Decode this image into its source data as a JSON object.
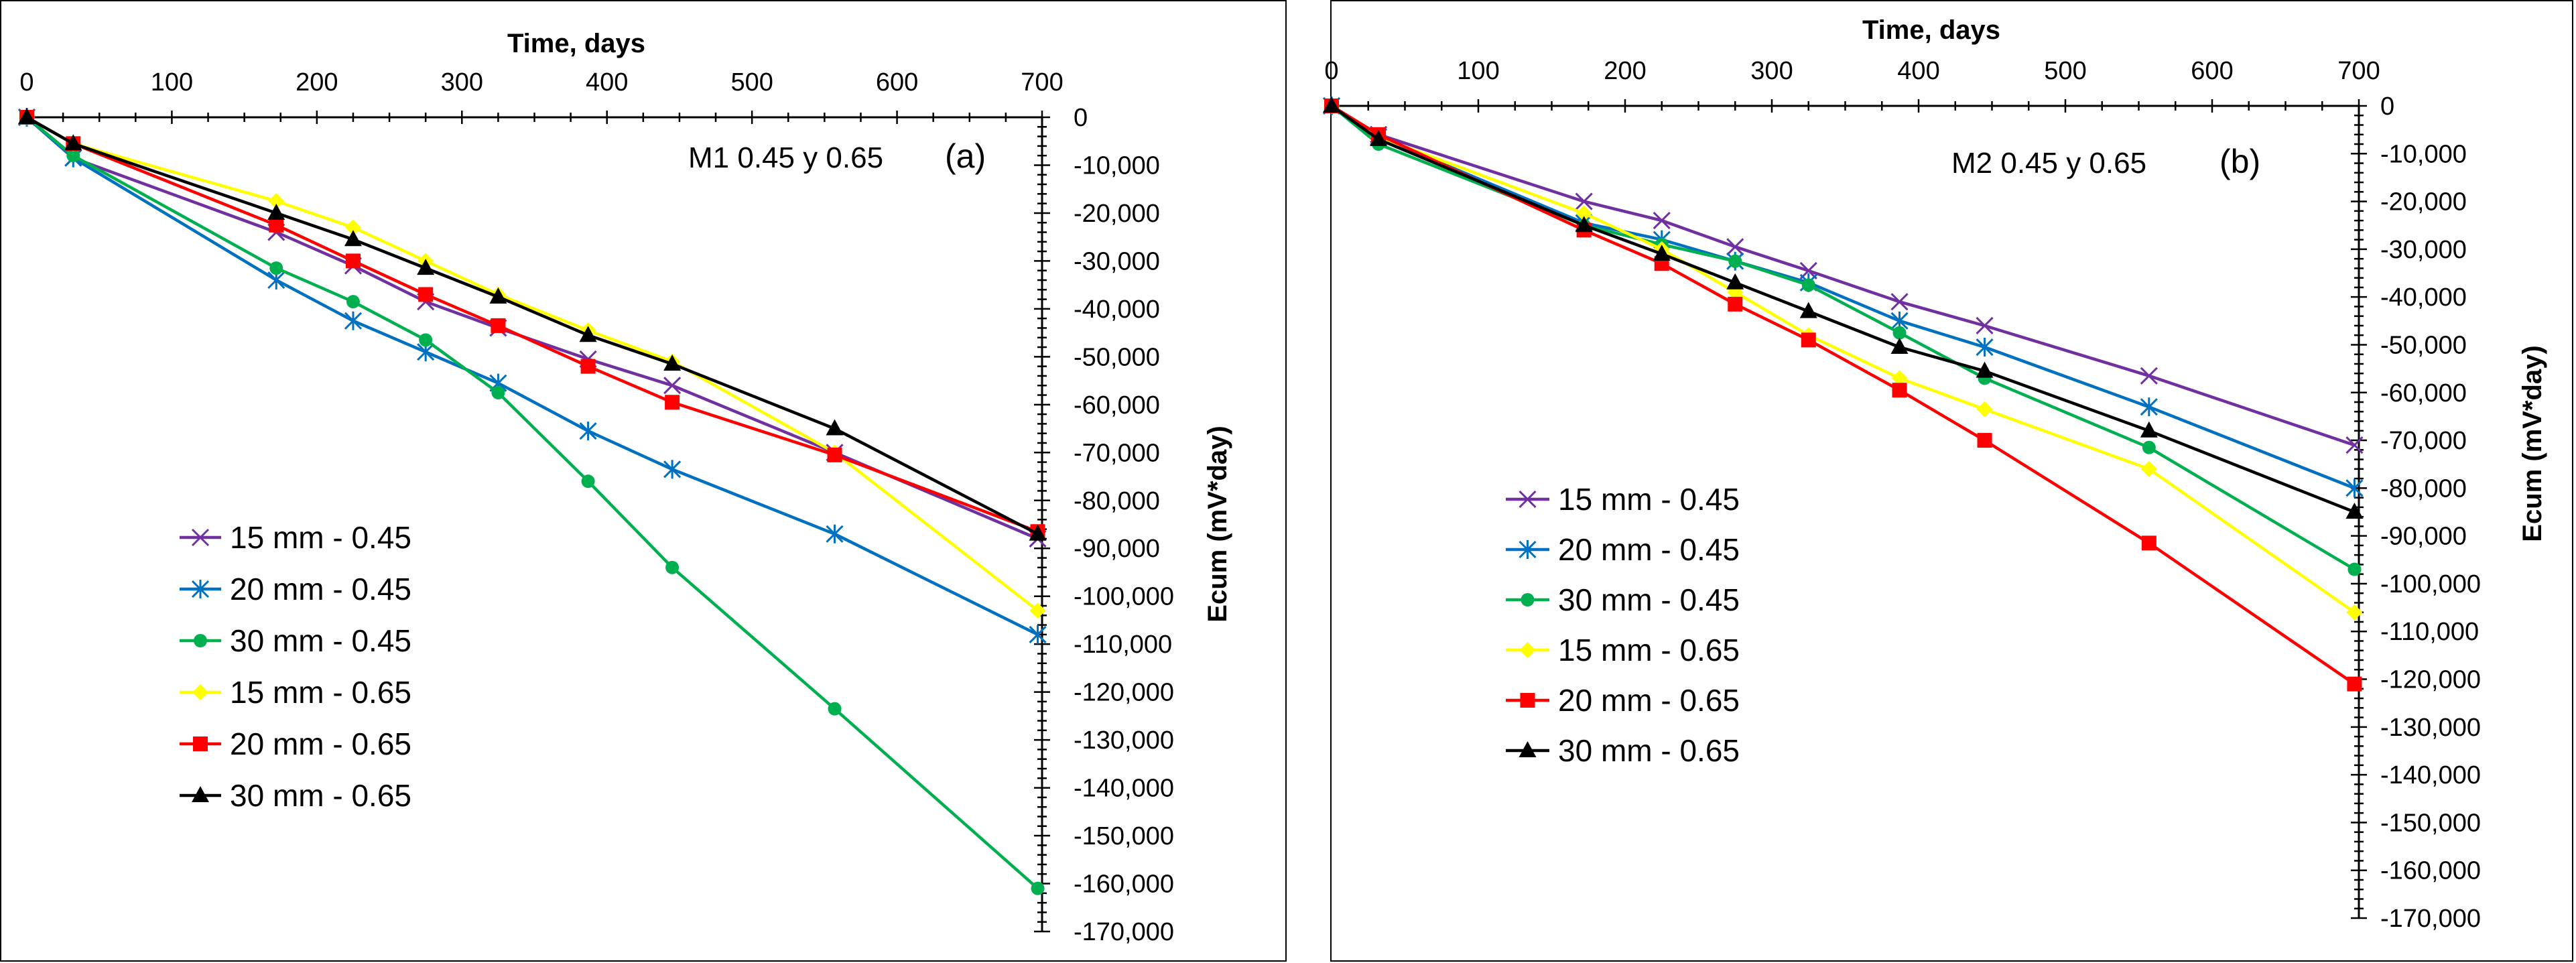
{
  "chart_data": [
    {
      "type": "line",
      "panel_id": "a",
      "title": "",
      "xlabel": "Time, days",
      "ylabel": "Ecum (mV*day)",
      "xlim": [
        0,
        700
      ],
      "ylim": [
        -170000,
        0
      ],
      "xticks": [
        0,
        100,
        200,
        300,
        400,
        500,
        600,
        700
      ],
      "xtick_labels": [
        "0",
        "100",
        "200",
        "300",
        "400",
        "500",
        "600",
        "700"
      ],
      "yticks": [
        0,
        -10000,
        -20000,
        -30000,
        -40000,
        -50000,
        -60000,
        -70000,
        -80000,
        -90000,
        -100000,
        -110000,
        -120000,
        -130000,
        -140000,
        -150000,
        -160000,
        -170000
      ],
      "ytick_labels": [
        "0",
        "-10,000",
        "-20,000",
        "-30,000",
        "-40,000",
        "-50,000",
        "-60,000",
        "-70,000",
        "-80,000",
        "-90,000",
        "-100,000",
        "-110,000",
        "-120,000",
        "-130,000",
        "-140,000",
        "-150,000",
        "-160,000",
        "-170,000"
      ],
      "annotation_label": "M1 0.45 y 0.65",
      "panel_label": "(a)",
      "legend": "lower-left",
      "grid": false,
      "series": [
        {
          "name": "15 mm - 0.45",
          "color": "#7030A0",
          "marker": "x",
          "x": [
            0,
            32,
            172,
            225,
            275,
            325,
            387,
            445,
            557,
            697
          ],
          "y": [
            0,
            -8500,
            -24000,
            -31000,
            -38500,
            -44000,
            -50500,
            -56000,
            -70000,
            -88000
          ]
        },
        {
          "name": "20 mm - 0.45",
          "color": "#0070C0",
          "marker": "asterisk",
          "x": [
            0,
            32,
            172,
            225,
            275,
            325,
            387,
            445,
            557,
            697
          ],
          "y": [
            0,
            -8500,
            -34000,
            -42500,
            -49000,
            -55500,
            -65500,
            -73500,
            -87000,
            -108000
          ]
        },
        {
          "name": "30 mm - 0.45",
          "color": "#00B050",
          "marker": "circle",
          "x": [
            0,
            32,
            172,
            225,
            275,
            325,
            387,
            445,
            557,
            697
          ],
          "y": [
            0,
            -8000,
            -31500,
            -38500,
            -46500,
            -57500,
            -76000,
            -94000,
            -123500,
            -161000
          ]
        },
        {
          "name": "15 mm - 0.65",
          "color": "#FFFF00",
          "marker": "diamond",
          "x": [
            0,
            32,
            172,
            225,
            275,
            325,
            387,
            445,
            557,
            697
          ],
          "y": [
            0,
            -5500,
            -17500,
            -23000,
            -30000,
            -37000,
            -44500,
            -51000,
            -70000,
            -103000
          ]
        },
        {
          "name": "20 mm - 0.65",
          "color": "#FF0000",
          "marker": "square",
          "x": [
            0,
            32,
            172,
            225,
            275,
            325,
            387,
            445,
            557,
            697
          ],
          "y": [
            0,
            -5500,
            -22500,
            -30000,
            -37000,
            -43500,
            -52000,
            -59500,
            -70500,
            -86500
          ]
        },
        {
          "name": "30 mm - 0.65",
          "color": "#000000",
          "marker": "triangle",
          "x": [
            0,
            32,
            172,
            225,
            275,
            325,
            387,
            445,
            557,
            697
          ],
          "y": [
            0,
            -5500,
            -20000,
            -25500,
            -31500,
            -37500,
            -45500,
            -51500,
            -65000,
            -87000
          ]
        }
      ]
    },
    {
      "type": "line",
      "panel_id": "b",
      "title": "",
      "xlabel": "Time, days",
      "ylabel": "Ecum (mV*day)",
      "xlim": [
        0,
        700
      ],
      "ylim": [
        -170000,
        0
      ],
      "xticks": [
        0,
        100,
        200,
        300,
        400,
        500,
        600,
        700
      ],
      "xtick_labels": [
        "0",
        "100",
        "200",
        "300",
        "400",
        "500",
        "600",
        "700"
      ],
      "yticks": [
        0,
        -10000,
        -20000,
        -30000,
        -40000,
        -50000,
        -60000,
        -70000,
        -80000,
        -90000,
        -100000,
        -110000,
        -120000,
        -130000,
        -140000,
        -150000,
        -160000,
        -170000
      ],
      "ytick_labels": [
        "0",
        "-10,000",
        "-20,000",
        "-30,000",
        "-40,000",
        "-50,000",
        "-60,000",
        "-70,000",
        "-80,000",
        "-90,000",
        "-100,000",
        "-110,000",
        "-120,000",
        "-130,000",
        "-140,000",
        "-150,000",
        "-160,000",
        "-170,000"
      ],
      "annotation_label": "M2 0.45 y 0.65",
      "panel_label": "(b)",
      "legend": "middle-left",
      "grid": false,
      "series": [
        {
          "name": "15 mm - 0.45",
          "color": "#7030A0",
          "marker": "x",
          "x": [
            0,
            32,
            172,
            225,
            275,
            325,
            387,
            445,
            557,
            697
          ],
          "y": [
            0,
            -6000,
            -20000,
            -24000,
            -29500,
            -34500,
            -41000,
            -46000,
            -56500,
            -71000
          ]
        },
        {
          "name": "20 mm - 0.45",
          "color": "#0070C0",
          "marker": "asterisk",
          "x": [
            0,
            32,
            172,
            225,
            275,
            325,
            387,
            445,
            557,
            697
          ],
          "y": [
            0,
            -6500,
            -24500,
            -28000,
            -32500,
            -37000,
            -45000,
            -50500,
            -63000,
            -80000
          ]
        },
        {
          "name": "30 mm - 0.45",
          "color": "#00B050",
          "marker": "circle",
          "x": [
            0,
            32,
            172,
            225,
            275,
            325,
            387,
            445,
            557,
            697
          ],
          "y": [
            0,
            -8000,
            -25000,
            -29000,
            -32500,
            -37500,
            -47500,
            -57000,
            -71500,
            -97000
          ]
        },
        {
          "name": "15 mm - 0.65",
          "color": "#FFFF00",
          "marker": "diamond",
          "x": [
            0,
            32,
            172,
            225,
            275,
            325,
            387,
            445,
            557,
            697
          ],
          "y": [
            0,
            -6500,
            -22500,
            -30000,
            -39000,
            -48000,
            -57000,
            -63500,
            -76000,
            -106000
          ]
        },
        {
          "name": "20 mm - 0.65",
          "color": "#FF0000",
          "marker": "square",
          "x": [
            0,
            32,
            172,
            225,
            275,
            325,
            387,
            445,
            557,
            697
          ],
          "y": [
            0,
            -6000,
            -26000,
            -33000,
            -41500,
            -49000,
            -59500,
            -70000,
            -91500,
            -121000
          ]
        },
        {
          "name": "30 mm - 0.65",
          "color": "#000000",
          "marker": "triangle",
          "x": [
            0,
            32,
            172,
            225,
            275,
            325,
            387,
            445,
            557,
            697
          ],
          "y": [
            0,
            -7000,
            -25000,
            -31000,
            -37000,
            -43000,
            -50500,
            -55500,
            -68000,
            -85000
          ]
        }
      ]
    }
  ]
}
